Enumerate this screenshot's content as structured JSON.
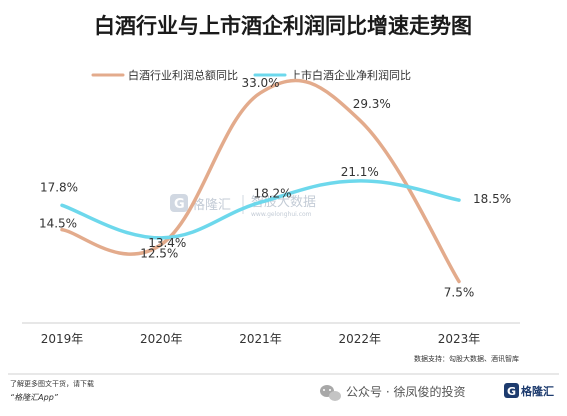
{
  "chart_data": {
    "type": "line",
    "title": "白酒行业与上市酒企利润同比增速走势图",
    "categories": [
      "2019年",
      "2020年",
      "2021年",
      "2022年",
      "2023年"
    ],
    "series": [
      {
        "name": "白酒行业利润总额同比",
        "color": "#e3ab8c",
        "values": [
          14.5,
          12.5,
          33.0,
          29.3,
          7.5
        ],
        "labels": [
          "14.5%",
          "12.5%",
          "33.0%",
          "29.3%",
          "7.5%"
        ]
      },
      {
        "name": "上市白酒企业净利润同比",
        "color": "#6dd8ec",
        "values": [
          17.8,
          13.4,
          18.2,
          21.1,
          18.5
        ],
        "labels": [
          "17.8%",
          "13.4%",
          "18.2%",
          "21.1%",
          "18.5%"
        ]
      }
    ],
    "ylim": [
      5,
      35
    ],
    "grid": false,
    "legend_position": "top"
  },
  "watermark": {
    "brand": "格隆汇",
    "text": "智股大数据",
    "url": "www.gelonghui.com"
  },
  "source_note": "数据支持：勾股大数据、酒讯智库",
  "footer_left": {
    "line1": "了解更多图文干货，请下载",
    "line2": "“格隆汇App”"
  },
  "footer_right": {
    "text": "公众号 · 徐凤俊的投资",
    "brand": "格隆汇"
  },
  "icons": [
    "wechat-icon",
    "gelonghui-logo-icon"
  ]
}
